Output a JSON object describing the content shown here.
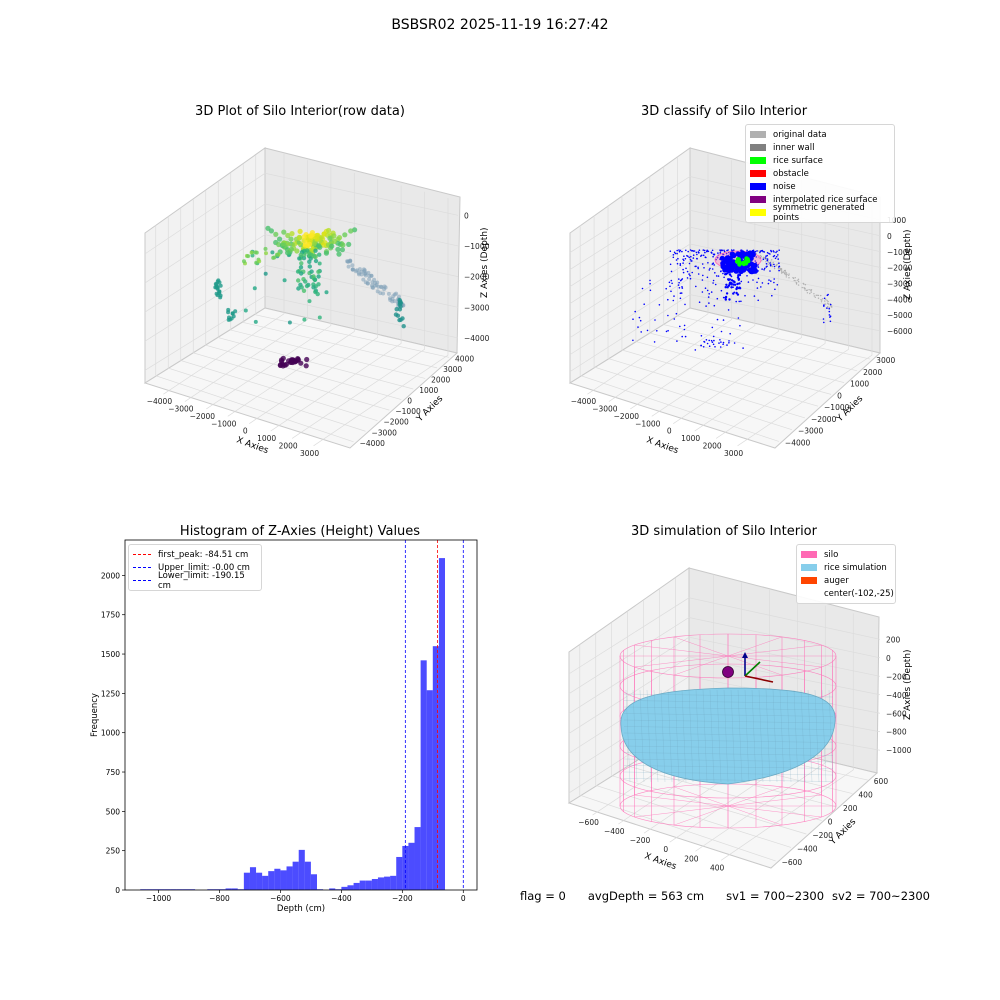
{
  "suptitle": "BSBSR02 2025-11-19 16:27:42",
  "chart_data": [
    {
      "type": "scatter",
      "projection": "3d",
      "title": "3D Plot of Silo Interior(row data)",
      "xlabel": "X Axies",
      "ylabel": "Y Axies",
      "zlabel": "Z Axies (Depth)",
      "xlim": [
        -4500,
        3500
      ],
      "ylim": [
        -4500,
        4000
      ],
      "zlim": [
        -5000,
        0
      ],
      "x_ticks": [
        "-4000",
        "-3000",
        "-2000",
        "-1000",
        "0",
        "1000",
        "2000",
        "3000"
      ],
      "y_ticks": [
        "-4000",
        "-3000",
        "-2000",
        "-1000",
        "0",
        "1000",
        "2000",
        "3000",
        "4000"
      ],
      "z_ticks": [
        "0",
        "-1000",
        "-2000",
        "-3000",
        "-4000"
      ],
      "colormap": "viridis",
      "grid": true
    },
    {
      "type": "scatter",
      "projection": "3d",
      "title": "3D classify of Silo Interior",
      "xlabel": "X Axies",
      "ylabel": "Y Axies",
      "zlabel": "Z Axies (Depth)",
      "xlim": [
        -4500,
        3500
      ],
      "ylim": [
        -4500,
        3500
      ],
      "zlim": [
        -6000,
        1000
      ],
      "x_ticks": [
        "-4000",
        "-3000",
        "-2000",
        "-1000",
        "0",
        "1000",
        "2000",
        "3000"
      ],
      "y_ticks": [
        "-4000",
        "-3000",
        "-2000",
        "-1000",
        "0",
        "1000",
        "2000",
        "3000"
      ],
      "z_ticks": [
        "1000",
        "0",
        "-1000",
        "-2000",
        "-3000",
        "-4000",
        "-5000",
        "-6000"
      ],
      "legend_position": "top-right",
      "legend": [
        {
          "label": "original data",
          "color": "#b0b0b0"
        },
        {
          "label": "inner wall",
          "color": "#808080"
        },
        {
          "label": "rice surface",
          "color": "#00ff00"
        },
        {
          "label": "obstacle",
          "color": "#ff0000"
        },
        {
          "label": "noise",
          "color": "#0000ff"
        },
        {
          "label": "interpolated rice surface",
          "color": "#800080"
        },
        {
          "label": "symmetric generated points",
          "color": "#ffff00"
        }
      ],
      "grid": true
    },
    {
      "type": "bar",
      "title": "Histogram of Z-Axies (Height) Values",
      "xlabel": "Depth (cm)",
      "ylabel": "Frequency",
      "xlim": [
        -1110,
        45
      ],
      "ylim": [
        0,
        2225
      ],
      "x_ticks": [
        "-1000",
        "-800",
        "-600",
        "-400",
        "-200",
        "0"
      ],
      "y_ticks": [
        "0",
        "250",
        "500",
        "750",
        "1000",
        "1250",
        "1500",
        "1750",
        "2000"
      ],
      "bar_color": "#0000ff",
      "bar_width": 20,
      "x": [
        -1040,
        -1020,
        -1000,
        -980,
        -960,
        -940,
        -920,
        -900,
        -880,
        -860,
        -840,
        -820,
        -800,
        -780,
        -760,
        -740,
        -720,
        -700,
        -680,
        -660,
        -640,
        -620,
        -600,
        -580,
        -560,
        -540,
        -520,
        -500,
        -480,
        -460,
        -440,
        -420,
        -400,
        -380,
        -360,
        -340,
        -320,
        -300,
        -280,
        -260,
        -240,
        -220,
        -200,
        -180,
        -160,
        -140,
        -120,
        -100,
        -80,
        -60,
        -40,
        -20,
        0
      ],
      "values": [
        5,
        5,
        5,
        5,
        5,
        5,
        5,
        5,
        5,
        0,
        0,
        5,
        5,
        5,
        10,
        10,
        5,
        110,
        145,
        110,
        90,
        120,
        135,
        125,
        150,
        180,
        255,
        180,
        100,
        5,
        0,
        10,
        5,
        20,
        30,
        45,
        60,
        60,
        70,
        80,
        85,
        90,
        210,
        280,
        300,
        400,
        1460,
        1270,
        1550,
        2110,
        0,
        0,
        0
      ],
      "reference_lines": [
        {
          "label": "first_peak: -84.51 cm",
          "x": -84.51,
          "color": "#ff0000"
        },
        {
          "label": "Upper_limit: -0.00 cm",
          "x": -0.0,
          "color": "#0000ff"
        },
        {
          "label": "Lower_limit: -190.15 cm",
          "x": -190.15,
          "color": "#0000ff"
        }
      ],
      "legend_position": "top-left"
    },
    {
      "type": "surface",
      "projection": "3d",
      "title": "3D simulation of Silo Interior",
      "xlabel": "X Axies",
      "ylabel": "Y Axies",
      "zlabel": "Z Axies (Depth)",
      "xlim": [
        -700,
        500
      ],
      "ylim": [
        -700,
        700
      ],
      "zlim": [
        -1100,
        300
      ],
      "x_ticks": [
        "-600",
        "-400",
        "-200",
        "0",
        "200",
        "400"
      ],
      "y_ticks": [
        "-600",
        "-400",
        "-200",
        "0",
        "200",
        "400",
        "600"
      ],
      "z_ticks": [
        "200",
        "0",
        "-200",
        "-400",
        "-600",
        "-800",
        "-1000"
      ],
      "legend_position": "top-right",
      "legend": [
        {
          "label": "silo",
          "color": "#ff69b4"
        },
        {
          "label": "rice simulation",
          "color": "#87ceeb"
        },
        {
          "label": "auger",
          "color": "#ff4500"
        },
        {
          "label": "center(-102,-25)",
          "color": ""
        }
      ],
      "grid": true
    }
  ],
  "footer": {
    "flag": "flag = 0",
    "avg_depth": "avgDepth = 563 cm",
    "sv1": "sv1 = 700~2300",
    "sv2": "sv2 = 700~2300"
  }
}
